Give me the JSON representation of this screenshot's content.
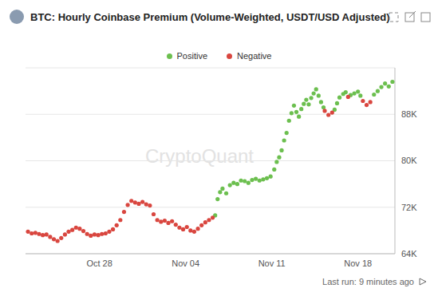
{
  "chart_data": {
    "type": "scatter",
    "title": "BTC: Hourly Coinbase Premium (Volume-Weighted, USDT/USD Adjusted)",
    "watermark": "CryptoQuant",
    "footer": "Last run: 9 minutes ago",
    "legend": "top",
    "grid": true,
    "marker": "circle",
    "xlim": [
      22,
      52
    ],
    "xticks": [
      {
        "value": 28,
        "label": "Oct 28"
      },
      {
        "value": 35,
        "label": "Nov 04"
      },
      {
        "value": 42,
        "label": "Nov 11"
      },
      {
        "value": 49,
        "label": "Nov 18"
      }
    ],
    "ylim": [
      64000,
      96000
    ],
    "yticks": [
      {
        "value": 64000,
        "label": "64K"
      },
      {
        "value": 72000,
        "label": "72K"
      },
      {
        "value": 80000,
        "label": "80K"
      },
      {
        "value": 88000,
        "label": "88K"
      }
    ],
    "series": [
      {
        "name": "Positive",
        "color": "#6cbf4f",
        "x": [
          37.4,
          37.6,
          37.8,
          38.0,
          38.3,
          38.6,
          38.9,
          39.2,
          39.5,
          39.8,
          40.1,
          40.4,
          40.7,
          41.0,
          41.3,
          41.6,
          41.9,
          42.2,
          42.4,
          42.6,
          42.8,
          43.0,
          43.2,
          43.4,
          43.6,
          43.8,
          44.0,
          44.2,
          44.4,
          44.6,
          44.8,
          45.0,
          45.2,
          45.4,
          45.6,
          45.8,
          46.0,
          46.2,
          47.1,
          47.3,
          47.5,
          47.8,
          48.0,
          48.4,
          48.7,
          49.0,
          49.2,
          50.3,
          50.6,
          50.9,
          51.2,
          51.5,
          51.8
        ],
        "values": [
          70600,
          73400,
          74600,
          75200,
          74400,
          75800,
          76200,
          76000,
          76600,
          76500,
          76200,
          76700,
          76900,
          76600,
          76800,
          77000,
          77300,
          78500,
          79800,
          80600,
          81800,
          83500,
          84800,
          86900,
          88200,
          89500,
          88400,
          87600,
          88900,
          89800,
          90500,
          89700,
          90800,
          91600,
          92300,
          91200,
          90100,
          89200,
          88800,
          89900,
          90900,
          91500,
          91800,
          91300,
          91600,
          91900,
          91200,
          91400,
          92000,
          92700,
          93300,
          92800,
          93600
        ]
      },
      {
        "name": "Negative",
        "color": "#d9463f",
        "x": [
          22.2,
          22.5,
          22.8,
          23.1,
          23.4,
          23.7,
          24.0,
          24.3,
          24.6,
          24.9,
          25.2,
          25.5,
          25.8,
          26.1,
          26.4,
          26.7,
          27.0,
          27.3,
          27.6,
          27.9,
          28.2,
          28.5,
          28.8,
          29.1,
          29.4,
          29.7,
          30.0,
          30.3,
          30.6,
          30.9,
          31.2,
          31.5,
          31.8,
          32.1,
          32.4,
          32.7,
          33.0,
          33.3,
          33.6,
          33.9,
          34.2,
          34.5,
          34.8,
          35.1,
          35.4,
          35.7,
          36.0,
          36.3,
          36.6,
          36.9,
          37.2,
          46.3,
          46.6,
          46.9,
          48.2,
          49.4,
          49.7,
          50.0
        ],
        "values": [
          67800,
          67500,
          67600,
          67400,
          67200,
          67300,
          66900,
          66500,
          66200,
          66700,
          67300,
          67800,
          68100,
          68500,
          68300,
          67900,
          67400,
          67100,
          67300,
          67200,
          67400,
          67500,
          67800,
          68200,
          68900,
          69800,
          71200,
          72400,
          73100,
          72800,
          72600,
          72900,
          72500,
          72300,
          70800,
          69800,
          69500,
          69700,
          69300,
          69600,
          69000,
          68500,
          68200,
          68600,
          68000,
          67800,
          68300,
          68900,
          69400,
          69800,
          70200,
          88600,
          87900,
          88300,
          91000,
          90300,
          89600,
          90100
        ]
      }
    ]
  }
}
